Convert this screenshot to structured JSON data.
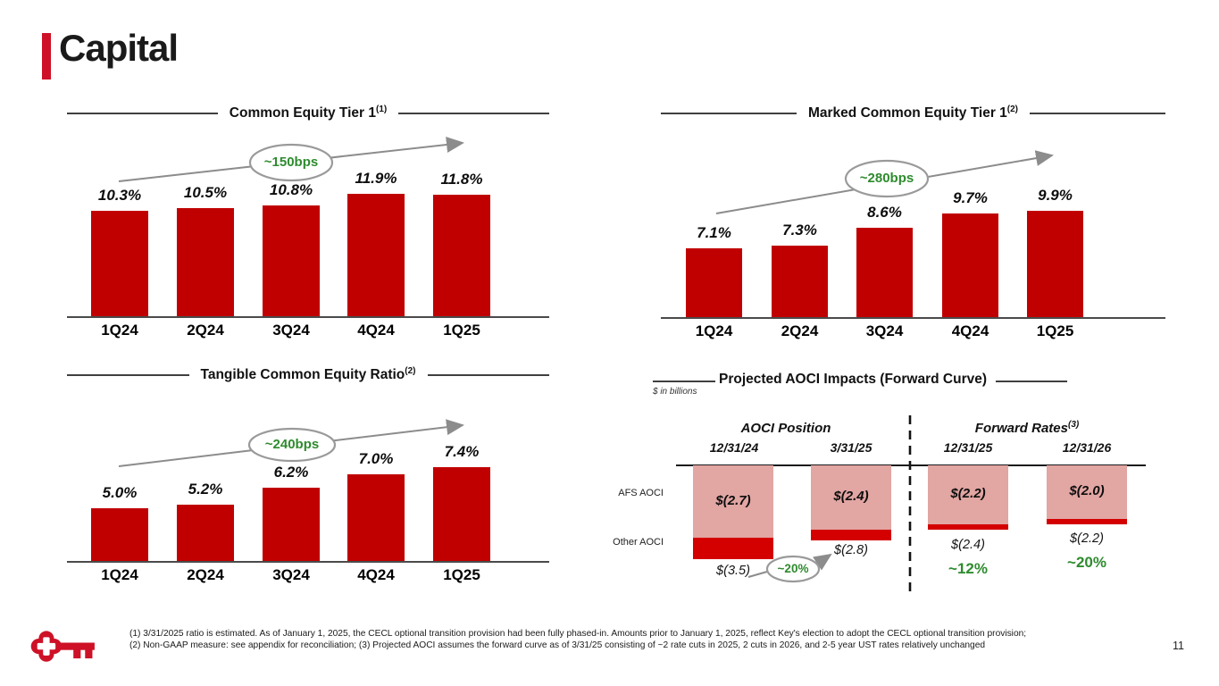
{
  "page": {
    "title": "Capital",
    "page_number": "11"
  },
  "colors": {
    "accent_red": "#CE1126",
    "logo_red": "#CE1126",
    "bar_red": "#C00000",
    "other_aoci_red": "#D40000",
    "afs_aoci_pink": "#E2A6A3",
    "annotation_green": "#2E8B2E",
    "arrow_gray": "#8C8C8C"
  },
  "footnotes": {
    "line1": "(1) 3/31/2025 ratio is estimated.  As of January 1, 2025, the CECL optional transition provision had been fully phased-in. Amounts prior to January 1, 2025, reflect Key's election to adopt the CECL optional transition provision;",
    "line2": "(2) Non-GAAP measure: see appendix for reconciliation; (3) Projected AOCI assumes the forward curve as of 3/31/25 consisting of ~2 rate cuts in 2025, 2 cuts in 2026, and 2-5 year UST rates relatively unchanged"
  },
  "chart_data": [
    {
      "type": "bar",
      "title": "Common Equity Tier 1",
      "title_superscript": "(1)",
      "categories": [
        "1Q24",
        "2Q24",
        "3Q24",
        "4Q24",
        "1Q25"
      ],
      "values": [
        10.3,
        10.5,
        10.8,
        11.9,
        11.8
      ],
      "value_labels": [
        "10.3%",
        "10.5%",
        "10.8%",
        "11.9%",
        "11.8%"
      ],
      "annotation": "~150bps",
      "unit": "%",
      "legend": "none",
      "grid": "off"
    },
    {
      "type": "bar",
      "title": "Marked Common Equity Tier 1",
      "title_superscript": "(2)",
      "categories": [
        "1Q24",
        "2Q24",
        "3Q24",
        "4Q24",
        "1Q25"
      ],
      "values": [
        7.1,
        7.3,
        8.6,
        9.7,
        9.9
      ],
      "value_labels": [
        "7.1%",
        "7.3%",
        "8.6%",
        "9.7%",
        "9.9%"
      ],
      "annotation": "~280bps",
      "unit": "%",
      "legend": "none",
      "grid": "off"
    },
    {
      "type": "bar",
      "title": "Tangible Common Equity Ratio",
      "title_superscript": "(2)",
      "categories": [
        "1Q24",
        "2Q24",
        "3Q24",
        "4Q24",
        "1Q25"
      ],
      "values": [
        5.0,
        5.2,
        6.2,
        7.0,
        7.4
      ],
      "value_labels": [
        "5.0%",
        "5.2%",
        "6.2%",
        "7.0%",
        "7.4%"
      ],
      "annotation": "~240bps",
      "unit": "%",
      "legend": "none",
      "grid": "off"
    },
    {
      "type": "bar",
      "subtype": "stacked-negative",
      "title": "Projected AOCI Impacts (Forward Curve)",
      "units_note": "$ in billions",
      "column_groups": [
        {
          "label": "AOCI Position",
          "superscript": "",
          "columns": [
            "12/31/24",
            "3/31/25"
          ]
        },
        {
          "label": "Forward Rates",
          "superscript": "(3)",
          "columns": [
            "12/31/25",
            "12/31/26"
          ]
        }
      ],
      "row_labels": [
        "AFS AOCI",
        "Other AOCI"
      ],
      "series": [
        {
          "name": "AFS AOCI",
          "values": [
            -2.7,
            -2.4,
            -2.2,
            -2.0
          ],
          "labels": [
            "$(2.7)",
            "$(2.4)",
            "$(2.2)",
            "$(2.0)"
          ]
        },
        {
          "name": "Other AOCI",
          "values": [
            -0.8,
            -0.4,
            -0.2,
            -0.2
          ]
        }
      ],
      "totals": {
        "values": [
          -3.5,
          -2.8,
          -2.4,
          -2.2
        ],
        "labels": [
          "$(3.5)",
          "$(2.8)",
          "$(2.4)",
          "$(2.2)"
        ]
      },
      "annotations": {
        "aoci_change": "~20%",
        "forward_change_12_31_25": "~12%",
        "forward_change_12_31_26": "~20%"
      }
    }
  ]
}
